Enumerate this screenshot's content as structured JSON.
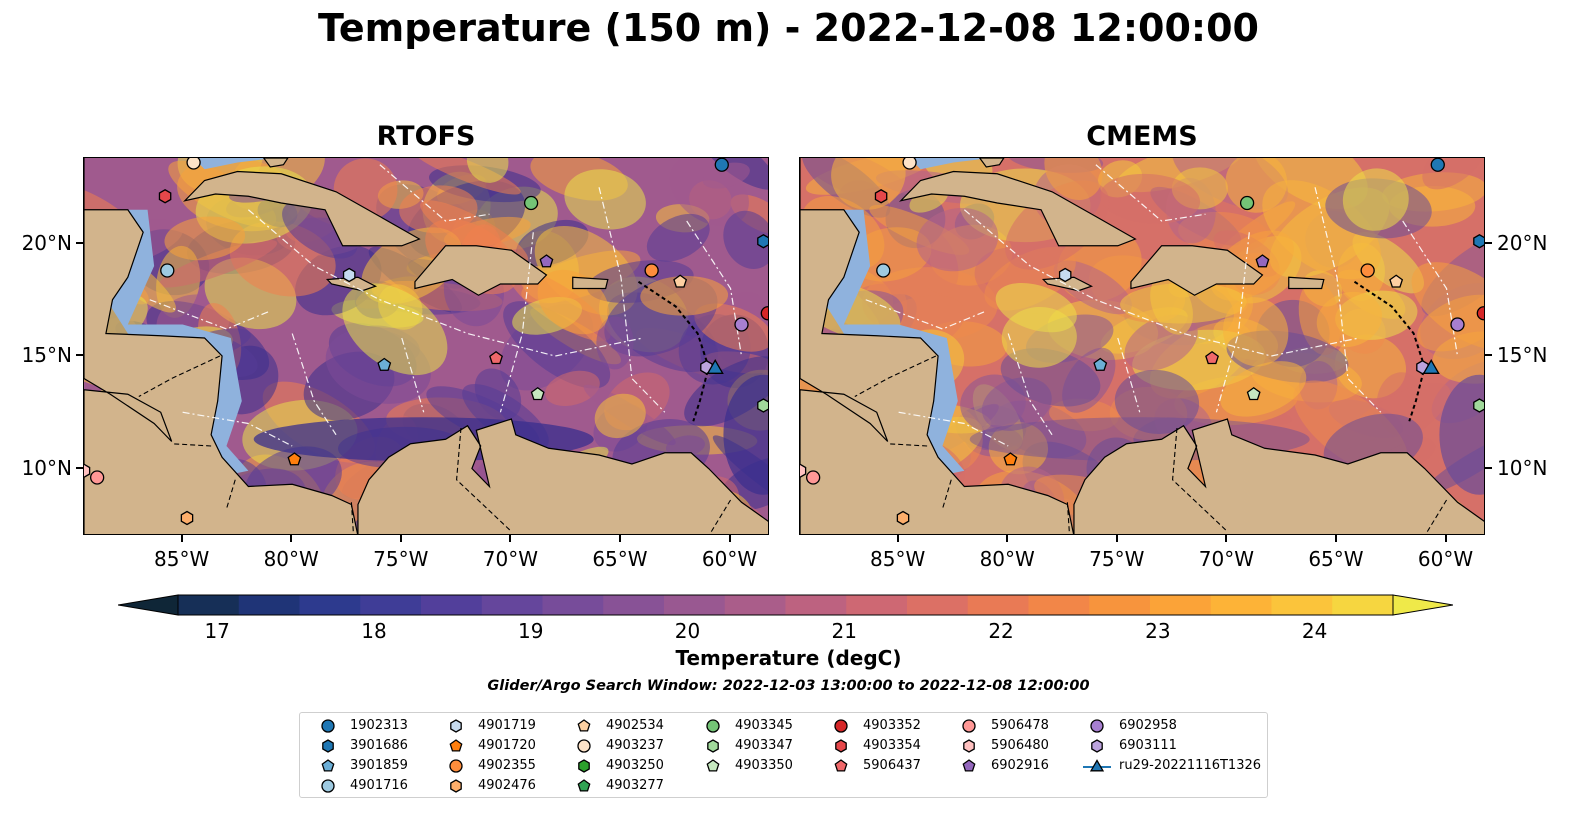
{
  "title": "Temperature (150 m) - 2022-12-08 12:00:00",
  "panels": [
    {
      "title": "RTOFS",
      "field_colors": [
        "#3a2f8e",
        "#553d96",
        "#7b4a97",
        "#a05a8e",
        "#d16a6b",
        "#f0804e",
        "#f7a23a",
        "#f5bf3c",
        "#e8e24a"
      ]
    },
    {
      "title": "CMEMS",
      "field_colors": [
        "#6a4c98",
        "#8a5596",
        "#b46488",
        "#d67068",
        "#ee8a4c",
        "#f6a03e",
        "#f7b33c",
        "#f4c63e",
        "#ecdf48"
      ]
    }
  ],
  "map": {
    "x_ticks": [
      "85°W",
      "80°W",
      "75°W",
      "70°W",
      "65°W",
      "60°W"
    ],
    "x_tick_values": [
      -85,
      -80,
      -75,
      -70,
      -65,
      -60
    ],
    "y_ticks": [
      "20°N",
      "15°N",
      "10°N"
    ],
    "y_tick_values": [
      20,
      15,
      10
    ],
    "lon_range": [
      -89.5,
      -58.2
    ],
    "lat_range": [
      7.0,
      23.8
    ],
    "land_color": "#d2b48c",
    "shelf_color": "#8fb2dd",
    "deep_cold_color": "#0b2233"
  },
  "colorbar": {
    "label": "Temperature (degC)",
    "ticks": [
      "17",
      "18",
      "19",
      "20",
      "21",
      "22",
      "23",
      "24"
    ],
    "tick_values": [
      17,
      18,
      19,
      20,
      21,
      22,
      23,
      24
    ],
    "range": [
      16.75,
      24.5
    ],
    "extend": "both",
    "colors": [
      "#0f2637",
      "#162f57",
      "#1f3477",
      "#2d3a8e",
      "#3f3d97",
      "#523f9b",
      "#65469c",
      "#774c9a",
      "#885296",
      "#995891",
      "#aa5d8a",
      "#bd6280",
      "#ce6873",
      "#dc7065",
      "#e97a55",
      "#f28648",
      "#f7943d",
      "#fba338",
      "#fdb337",
      "#fbc43b",
      "#f6d640",
      "#efe949"
    ]
  },
  "search_window": "Glider/Argo Search Window: 2022-12-03 13:00:00 to 2022-12-08 12:00:00",
  "legend": {
    "columns": [
      [
        {
          "label": "1902313",
          "marker": "circle",
          "color": "#1f77b4"
        },
        {
          "label": "3901686",
          "marker": "hexagon",
          "color": "#1f77b4"
        },
        {
          "label": "3901859",
          "marker": "pentagon",
          "color": "#6baed6"
        },
        {
          "label": "4901716",
          "marker": "circle",
          "color": "#9ecae1"
        }
      ],
      [
        {
          "label": "4901719",
          "marker": "hexagon",
          "color": "#c6dbef"
        },
        {
          "label": "4901720",
          "marker": "pentagon",
          "color": "#ff7f0e"
        },
        {
          "label": "4902355",
          "marker": "circle",
          "color": "#fd8d3c"
        },
        {
          "label": "4902476",
          "marker": "hexagon",
          "color": "#fdae6b"
        }
      ],
      [
        {
          "label": "4902534",
          "marker": "pentagon",
          "color": "#fdd0a2"
        },
        {
          "label": "4903237",
          "marker": "circle",
          "color": "#fde3c8"
        },
        {
          "label": "4903250",
          "marker": "hexagon",
          "color": "#2ca02c"
        },
        {
          "label": "4903277",
          "marker": "pentagon",
          "color": "#31a354"
        }
      ],
      [
        {
          "label": "4903345",
          "marker": "circle",
          "color": "#74c476"
        },
        {
          "label": "4903347",
          "marker": "hexagon",
          "color": "#a1d99b"
        },
        {
          "label": "4903350",
          "marker": "pentagon",
          "color": "#c7e9c0"
        }
      ],
      [
        {
          "label": "4903352",
          "marker": "circle",
          "color": "#d62728"
        },
        {
          "label": "4903354",
          "marker": "hexagon",
          "color": "#e6474a"
        },
        {
          "label": "5906437",
          "marker": "pentagon",
          "color": "#f0686a"
        }
      ],
      [
        {
          "label": "5906478",
          "marker": "circle",
          "color": "#ff9896"
        },
        {
          "label": "5906480",
          "marker": "hexagon",
          "color": "#ffc1c0"
        },
        {
          "label": "6902916",
          "marker": "pentagon",
          "color": "#9467bd"
        }
      ],
      [
        {
          "label": "6902958",
          "marker": "circle",
          "color": "#a77fd0"
        },
        {
          "label": "6903111",
          "marker": "hexagon",
          "color": "#bca3dd"
        },
        {
          "label": "ru29-20221116T1326",
          "marker": "triangle-line",
          "color": "#1f77b4"
        }
      ]
    ]
  },
  "floats": [
    {
      "id": "1902313",
      "lon": -60.4,
      "lat": 23.5
    },
    {
      "id": "3901686",
      "lon": -58.5,
      "lat": 20.1
    },
    {
      "id": "3901859",
      "lon": -75.8,
      "lat": 14.6
    },
    {
      "id": "4901716",
      "lon": -85.7,
      "lat": 18.8
    },
    {
      "id": "4901719",
      "lon": -77.4,
      "lat": 18.6
    },
    {
      "id": "4901720",
      "lon": -79.9,
      "lat": 10.4
    },
    {
      "id": "4902355",
      "lon": -63.6,
      "lat": 18.8
    },
    {
      "id": "4902476",
      "lon": -84.8,
      "lat": 7.8
    },
    {
      "id": "4902534",
      "lon": -62.3,
      "lat": 18.3
    },
    {
      "id": "4903237",
      "lon": -84.5,
      "lat": 23.6
    },
    {
      "id": "4903345",
      "lon": -69.1,
      "lat": 21.8
    },
    {
      "id": "4903350",
      "lon": -68.8,
      "lat": 13.3
    },
    {
      "id": "4903352",
      "lon": -58.3,
      "lat": 16.9
    },
    {
      "id": "4903354",
      "lon": -85.8,
      "lat": 22.1
    },
    {
      "id": "5906437",
      "lon": -70.7,
      "lat": 14.9
    },
    {
      "id": "5906478",
      "lon": -88.9,
      "lat": 9.6
    },
    {
      "id": "5906480",
      "lon": -89.5,
      "lat": 9.9
    },
    {
      "id": "6902916",
      "lon": -68.4,
      "lat": 19.2
    },
    {
      "id": "6902958",
      "lon": -59.5,
      "lat": 16.4
    },
    {
      "id": "6903111",
      "lon": -61.1,
      "lat": 14.5
    },
    {
      "id": "4903347",
      "lon": -58.5,
      "lat": 12.8
    }
  ],
  "glider": {
    "id": "ru29-20221116T1326",
    "lon": -60.7,
    "lat": 14.5
  }
}
